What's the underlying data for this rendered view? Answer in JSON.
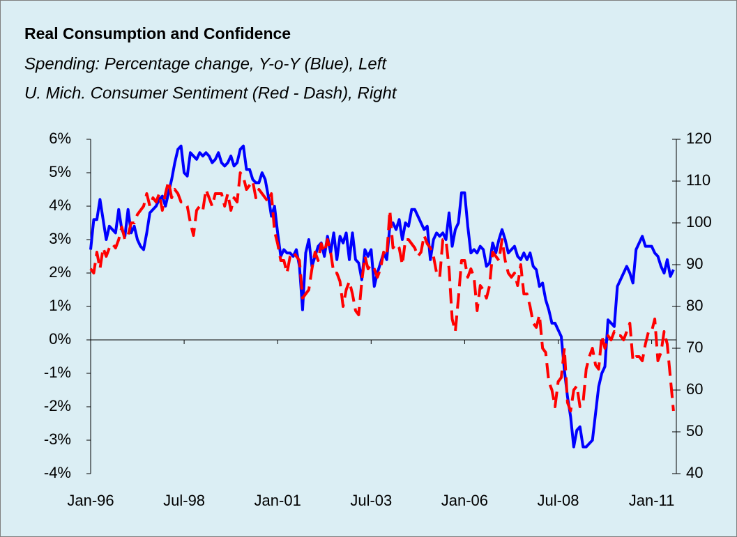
{
  "chart_data": {
    "type": "line",
    "title": "Real Consumption and Confidence",
    "subtitle": [
      "Spending: Percentage change, Y-o-Y (Blue), Left",
      "U. Mich. Consumer Sentiment (Red - Dash), Right"
    ],
    "categories": [
      "Jan-96",
      null,
      null,
      null,
      null,
      null,
      null,
      null,
      null,
      null,
      null,
      null,
      null,
      null,
      null,
      null,
      null,
      null,
      null,
      null,
      null,
      null,
      null,
      null,
      null,
      null,
      null,
      null,
      null,
      null,
      "Jul-98",
      null,
      null,
      null,
      null,
      null,
      null,
      null,
      null,
      null,
      null,
      null,
      null,
      null,
      null,
      null,
      null,
      null,
      null,
      null,
      null,
      null,
      null,
      null,
      null,
      null,
      null,
      null,
      null,
      null,
      "Jan-01",
      null,
      null,
      null,
      null,
      null,
      null,
      null,
      null,
      null,
      null,
      null,
      null,
      null,
      null,
      null,
      null,
      null,
      null,
      null,
      null,
      null,
      null,
      null,
      null,
      null,
      null,
      null,
      null,
      null,
      "Jul-03",
      null,
      null,
      null,
      null,
      null,
      null,
      null,
      null,
      null,
      null,
      null,
      null,
      null,
      null,
      null,
      null,
      null,
      null,
      null,
      null,
      null,
      null,
      null,
      null,
      null,
      null,
      null,
      null,
      null,
      "Jan-06",
      null,
      null,
      null,
      null,
      null,
      null,
      null,
      null,
      null,
      null,
      null,
      null,
      null,
      null,
      null,
      null,
      null,
      null,
      null,
      null,
      null,
      null,
      null,
      null,
      null,
      null,
      null,
      null,
      null,
      "Jul-08",
      null,
      null,
      null,
      null,
      null,
      null,
      null,
      null,
      null,
      null,
      null,
      null,
      null,
      null,
      null,
      null,
      null,
      null,
      null,
      null,
      null,
      null,
      null,
      null,
      null,
      null,
      null,
      null,
      null,
      "Jan-11",
      null,
      null,
      null,
      null,
      null,
      null,
      null
    ],
    "ylim": [
      -4,
      6
    ],
    "yticks": [
      {
        "value": -4,
        "label": "-4%"
      },
      {
        "value": -3,
        "label": "-3%"
      },
      {
        "value": -2,
        "label": "-2%"
      },
      {
        "value": -1,
        "label": "-1%"
      },
      {
        "value": 0,
        "label": "0%"
      },
      {
        "value": 1,
        "label": "1%"
      },
      {
        "value": 2,
        "label": "2%"
      },
      {
        "value": 3,
        "label": "3%"
      },
      {
        "value": 4,
        "label": "4%"
      },
      {
        "value": 5,
        "label": "5%"
      },
      {
        "value": 6,
        "label": "6%"
      }
    ],
    "y2lim": [
      40,
      120
    ],
    "y2ticks": [
      40,
      50,
      60,
      70,
      80,
      90,
      100,
      110,
      120
    ],
    "series": [
      {
        "color": "#0000ff",
        "style": "solid",
        "values": [
          2.7,
          3.6,
          3.6,
          4.2,
          3.6,
          3.0,
          3.4,
          3.3,
          3.2,
          3.9,
          3.3,
          3.1,
          3.9,
          3.2,
          3.4,
          3.0,
          2.8,
          2.7,
          3.2,
          3.8,
          3.9,
          4.0,
          4.2,
          4.3,
          4.0,
          4.4,
          4.8,
          5.3,
          5.7,
          5.8,
          5.0,
          4.9,
          5.6,
          5.5,
          5.4,
          5.6,
          5.5,
          5.6,
          5.5,
          5.3,
          5.4,
          5.6,
          5.3,
          5.2,
          5.3,
          5.5,
          5.2,
          5.3,
          5.7,
          5.8,
          5.1,
          5.1,
          4.8,
          4.7,
          4.7,
          5.0,
          4.8,
          4.3,
          3.7,
          4.0,
          3.2,
          2.5,
          2.7,
          2.6,
          2.6,
          2.5,
          2.7,
          2.2,
          0.9,
          2.6,
          3.0,
          2.2,
          2.5,
          2.8,
          2.9,
          2.5,
          3.1,
          2.6,
          3.2,
          2.4,
          3.1,
          2.9,
          3.2,
          2.4,
          3.2,
          2.4,
          2.3,
          1.8,
          2.7,
          2.5,
          2.7,
          1.6,
          2.0,
          2.3,
          2.6,
          2.4,
          3.4,
          3.5,
          3.3,
          3.6,
          3.0,
          3.5,
          3.4,
          3.9,
          3.9,
          3.7,
          3.5,
          3.3,
          3.4,
          2.4,
          3.0,
          3.2,
          3.1,
          3.2,
          3.0,
          3.8,
          2.8,
          3.3,
          3.5,
          4.4,
          4.4,
          3.4,
          2.6,
          2.7,
          2.6,
          2.8,
          2.7,
          2.2,
          2.3,
          2.9,
          2.6,
          3.0,
          3.3,
          3.0,
          2.6,
          2.7,
          2.8,
          2.5,
          2.4,
          2.6,
          2.4,
          2.6,
          2.2,
          2.1,
          1.6,
          1.7,
          1.2,
          0.9,
          0.5,
          0.5,
          0.3,
          0.1,
          -0.9,
          -1.7,
          -2.3,
          -3.2,
          -2.7,
          -2.6,
          -3.2,
          -3.2,
          -3.1,
          -3.0,
          -2.2,
          -1.4,
          -1.0,
          -0.8,
          0.6,
          0.5,
          0.4,
          1.6,
          1.8,
          2.0,
          2.2,
          2.0,
          1.7,
          2.7,
          2.9,
          3.1,
          2.8,
          2.8,
          2.8,
          2.6,
          2.5,
          2.2,
          2.0,
          2.4,
          1.9,
          2.1
        ]
      },
      {
        "color": "#ff0000",
        "style": "dashed",
        "axis": "y2",
        "values": [
          89,
          88,
          93,
          89,
          94,
          92,
          94,
          95,
          94,
          96,
          99,
          96,
          97,
          100,
          100,
          102,
          103,
          104,
          107,
          104,
          106,
          105,
          107,
          103,
          107,
          110,
          106,
          108,
          107,
          105,
          105,
          104,
          100,
          97,
          103,
          104,
          103,
          108,
          106,
          104,
          107,
          107,
          107,
          104,
          107,
          103,
          106,
          105,
          112,
          111,
          108,
          109,
          110,
          106,
          108,
          107,
          106,
          105,
          107,
          98,
          95,
          91,
          91,
          88,
          92,
          93,
          92,
          91,
          82,
          83,
          84,
          89,
          93,
          91,
          95,
          93,
          96,
          93,
          88,
          88,
          86,
          80,
          84,
          86,
          83,
          79,
          78,
          86,
          92,
          89,
          90,
          89,
          87,
          89,
          93,
          92,
          103,
          94,
          95,
          94,
          90,
          96,
          96,
          95,
          94,
          92,
          93,
          97,
          95,
          94,
          92,
          88,
          87,
          96,
          96,
          89,
          77,
          74,
          82,
          91,
          91,
          87,
          89,
          87,
          79,
          85,
          84,
          82,
          85,
          93,
          92,
          91,
          96,
          91,
          88,
          87,
          88,
          85,
          90,
          83,
          83,
          80,
          76,
          75,
          78,
          70,
          69,
          62,
          60,
          56,
          62,
          63,
          70,
          57,
          55,
          60,
          61,
          56,
          57,
          65,
          68,
          70,
          66,
          65,
          73,
          70,
          73,
          72,
          74,
          73,
          73,
          72,
          74,
          76,
          67,
          68,
          68,
          67,
          71,
          74,
          74,
          77,
          67,
          69,
          74,
          71,
          63,
          55
        ]
      }
    ]
  }
}
